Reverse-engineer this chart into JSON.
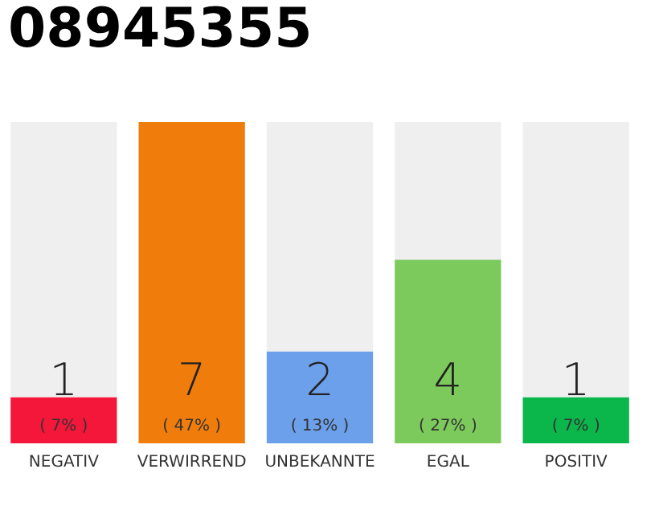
{
  "chart_data": {
    "type": "bar",
    "title": "08945355",
    "categories": [
      "NEGATIV",
      "VERWIRREND",
      "UNBEKANNTE",
      "EGAL",
      "POSITIV"
    ],
    "values": [
      1,
      7,
      2,
      4,
      1
    ],
    "colors": [
      "#f5173a",
      "#f07d0b",
      "#6ca0ea",
      "#7dca5c",
      "#0bb64a"
    ],
    "data_labels": true,
    "annotations": [
      {
        "text": "( 7% )",
        "x": "NEGATIV",
        "y": 0
      },
      {
        "text": "( 47% )",
        "x": "VERWIRREND",
        "y": 0
      },
      {
        "text": "( 13% )",
        "x": "UNBEKANNTE",
        "y": 0
      },
      {
        "text": "( 27% )",
        "x": "EGAL",
        "y": 0
      },
      {
        "text": "( 7% )",
        "x": "POSITIV",
        "y": 0
      }
    ],
    "grid": false
  }
}
